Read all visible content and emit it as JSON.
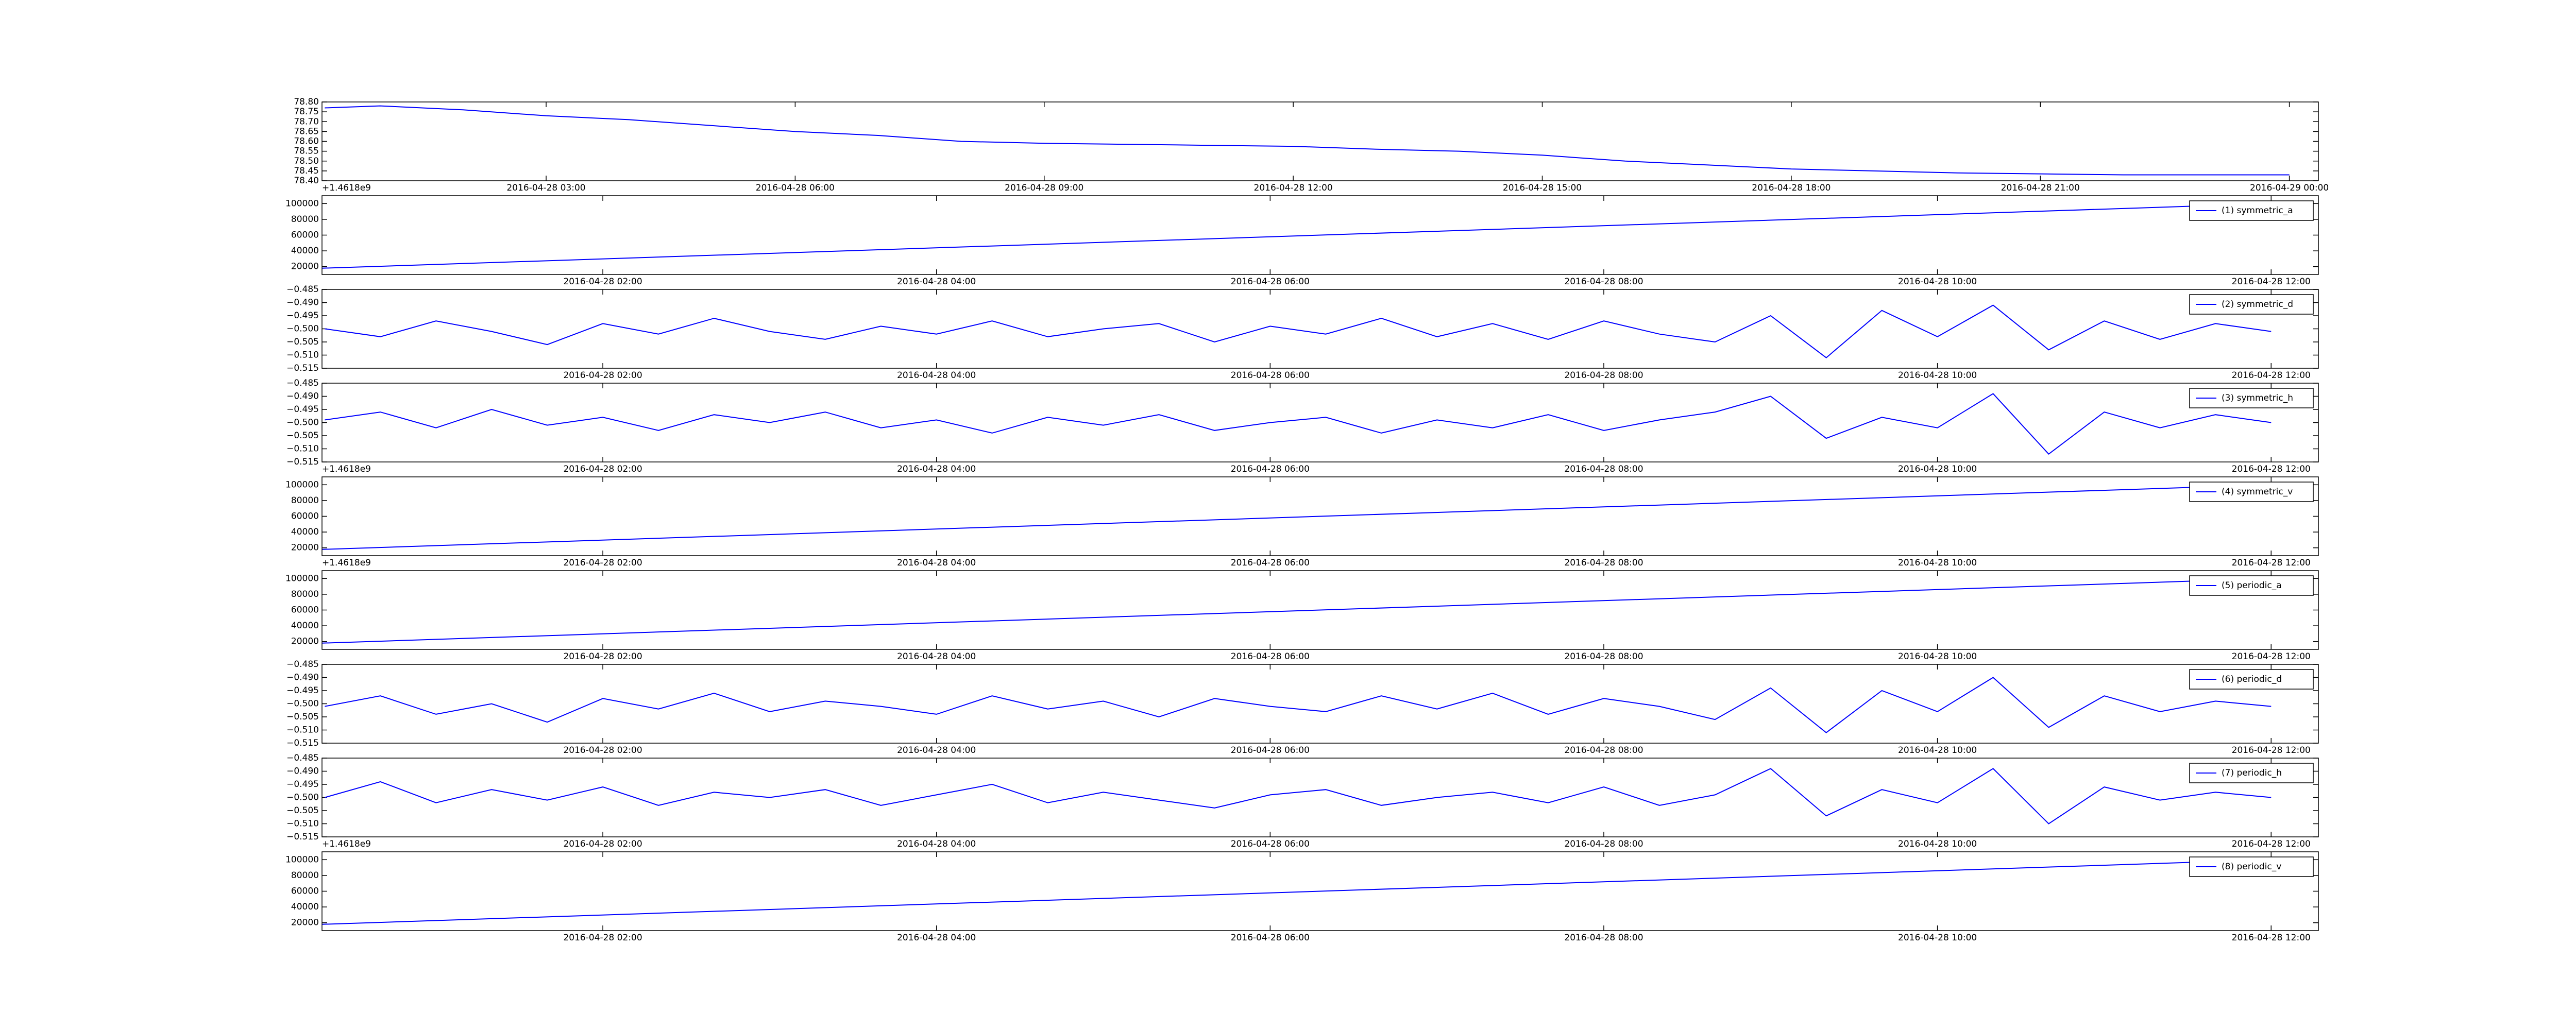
{
  "chart_data": [
    {
      "type": "line",
      "offset_text": "+1.4618e9",
      "color": "#0000ff",
      "x": [
        "2016-04-28 00:20",
        "2016-04-28 01:00",
        "2016-04-28 02:00",
        "2016-04-28 03:00",
        "2016-04-28 04:00",
        "2016-04-28 05:00",
        "2016-04-28 06:00",
        "2016-04-28 07:00",
        "2016-04-28 08:00",
        "2016-04-28 09:00",
        "2016-04-28 10:00",
        "2016-04-28 11:00",
        "2016-04-28 12:00",
        "2016-04-28 13:00",
        "2016-04-28 14:00",
        "2016-04-28 15:00",
        "2016-04-28 16:00",
        "2016-04-28 17:00",
        "2016-04-28 18:00",
        "2016-04-28 19:00",
        "2016-04-28 20:00",
        "2016-04-28 21:00",
        "2016-04-28 22:00",
        "2016-04-28 23:00",
        "2016-04-29 00:00"
      ],
      "values": [
        78.77,
        78.78,
        78.76,
        78.73,
        78.71,
        78.68,
        78.65,
        78.63,
        78.6,
        78.59,
        78.585,
        78.58,
        78.575,
        78.56,
        78.55,
        78.53,
        78.5,
        78.48,
        78.46,
        78.45,
        78.44,
        78.435,
        78.43,
        78.43,
        78.43
      ],
      "xlim": [
        "2016-04-28 00:18",
        "2016-04-29 00:21"
      ],
      "xticks": [
        "2016-04-28 03:00",
        "2016-04-28 06:00",
        "2016-04-28 09:00",
        "2016-04-28 12:00",
        "2016-04-28 15:00",
        "2016-04-28 18:00",
        "2016-04-28 21:00",
        "2016-04-29 00:00"
      ],
      "ylim": [
        78.4,
        78.8
      ],
      "yticks": [
        {
          "value": 78.4,
          "label": "78.40"
        },
        {
          "value": 78.45,
          "label": "78.45"
        },
        {
          "value": 78.5,
          "label": "78.50"
        },
        {
          "value": 78.55,
          "label": "78.55"
        },
        {
          "value": 78.6,
          "label": "78.60"
        },
        {
          "value": 78.65,
          "label": "78.65"
        },
        {
          "value": 78.7,
          "label": "78.70"
        },
        {
          "value": 78.75,
          "label": "78.75"
        },
        {
          "value": 78.8,
          "label": "78.80"
        }
      ]
    },
    {
      "type": "line",
      "legend": "upper right",
      "x": [
        "2016-04-28 00:19",
        "2016-04-28 12:00"
      ],
      "series": [
        {
          "name": "(1) symmetric_a",
          "color": "#0000ff",
          "values": [
            18000,
            100000
          ]
        }
      ],
      "xlim": [
        "2016-04-28 00:19",
        "2016-04-28 12:17"
      ],
      "xticks": [
        "2016-04-28 02:00",
        "2016-04-28 04:00",
        "2016-04-28 06:00",
        "2016-04-28 08:00",
        "2016-04-28 10:00",
        "2016-04-28 12:00"
      ],
      "ylim": [
        10000,
        110000
      ],
      "yticks": [
        20000,
        40000,
        60000,
        80000,
        100000
      ]
    },
    {
      "type": "line",
      "legend": "upper right",
      "x": [
        "2016-04-28 00:20",
        "2016-04-28 00:40",
        "2016-04-28 01:00",
        "2016-04-28 01:20",
        "2016-04-28 01:40",
        "2016-04-28 02:00",
        "2016-04-28 02:20",
        "2016-04-28 02:40",
        "2016-04-28 03:00",
        "2016-04-28 03:20",
        "2016-04-28 03:40",
        "2016-04-28 04:00",
        "2016-04-28 04:20",
        "2016-04-28 04:40",
        "2016-04-28 05:00",
        "2016-04-28 05:20",
        "2016-04-28 05:40",
        "2016-04-28 06:00",
        "2016-04-28 06:20",
        "2016-04-28 06:40",
        "2016-04-28 07:00",
        "2016-04-28 07:20",
        "2016-04-28 07:40",
        "2016-04-28 08:00",
        "2016-04-28 08:20",
        "2016-04-28 08:40",
        "2016-04-28 09:00",
        "2016-04-28 09:20",
        "2016-04-28 09:40",
        "2016-04-28 10:00",
        "2016-04-28 10:20",
        "2016-04-28 10:40",
        "2016-04-28 11:00",
        "2016-04-28 11:20",
        "2016-04-28 11:40",
        "2016-04-28 12:00"
      ],
      "series": [
        {
          "name": "(2) symmetric_d",
          "color": "#0000ff",
          "values": [
            -0.5,
            -0.503,
            -0.497,
            -0.501,
            -0.506,
            -0.498,
            -0.502,
            -0.496,
            -0.501,
            -0.504,
            -0.499,
            -0.502,
            -0.497,
            -0.503,
            -0.5,
            -0.498,
            -0.505,
            -0.499,
            -0.502,
            -0.496,
            -0.503,
            -0.498,
            -0.504,
            -0.497,
            -0.502,
            -0.505,
            -0.495,
            -0.511,
            -0.493,
            -0.503,
            -0.491,
            -0.508,
            -0.497,
            -0.504,
            -0.498,
            -0.501
          ]
        }
      ],
      "xlim": [
        "2016-04-28 00:19",
        "2016-04-28 12:17"
      ],
      "xticks": [
        "2016-04-28 02:00",
        "2016-04-28 04:00",
        "2016-04-28 06:00",
        "2016-04-28 08:00",
        "2016-04-28 10:00",
        "2016-04-28 12:00"
      ],
      "ylim": [
        -0.515,
        -0.485
      ],
      "yticks": [
        {
          "value": -0.515,
          "label": "−0.515"
        },
        {
          "value": -0.51,
          "label": "−0.510"
        },
        {
          "value": -0.505,
          "label": "−0.505"
        },
        {
          "value": -0.5,
          "label": "−0.500"
        },
        {
          "value": -0.495,
          "label": "−0.495"
        },
        {
          "value": -0.49,
          "label": "−0.490"
        },
        {
          "value": -0.485,
          "label": "−0.485"
        }
      ]
    },
    {
      "type": "line",
      "legend": "upper right",
      "offset_text": "+1.4618e9",
      "x": [
        "2016-04-28 00:20",
        "2016-04-28 00:40",
        "2016-04-28 01:00",
        "2016-04-28 01:20",
        "2016-04-28 01:40",
        "2016-04-28 02:00",
        "2016-04-28 02:20",
        "2016-04-28 02:40",
        "2016-04-28 03:00",
        "2016-04-28 03:20",
        "2016-04-28 03:40",
        "2016-04-28 04:00",
        "2016-04-28 04:20",
        "2016-04-28 04:40",
        "2016-04-28 05:00",
        "2016-04-28 05:20",
        "2016-04-28 05:40",
        "2016-04-28 06:00",
        "2016-04-28 06:20",
        "2016-04-28 06:40",
        "2016-04-28 07:00",
        "2016-04-28 07:20",
        "2016-04-28 07:40",
        "2016-04-28 08:00",
        "2016-04-28 08:20",
        "2016-04-28 08:40",
        "2016-04-28 09:00",
        "2016-04-28 09:20",
        "2016-04-28 09:40",
        "2016-04-28 10:00",
        "2016-04-28 10:20",
        "2016-04-28 10:40",
        "2016-04-28 11:00",
        "2016-04-28 11:20",
        "2016-04-28 11:40",
        "2016-04-28 12:00"
      ],
      "series": [
        {
          "name": "(3) symmetric_h",
          "color": "#0000ff",
          "values": [
            -0.499,
            -0.496,
            -0.502,
            -0.495,
            -0.501,
            -0.498,
            -0.503,
            -0.497,
            -0.5,
            -0.496,
            -0.502,
            -0.499,
            -0.504,
            -0.498,
            -0.501,
            -0.497,
            -0.503,
            -0.5,
            -0.498,
            -0.504,
            -0.499,
            -0.502,
            -0.497,
            -0.503,
            -0.499,
            -0.496,
            -0.49,
            -0.506,
            -0.498,
            -0.502,
            -0.489,
            -0.512,
            -0.496,
            -0.502,
            -0.497,
            -0.5
          ]
        }
      ],
      "xlim": [
        "2016-04-28 00:19",
        "2016-04-28 12:17"
      ],
      "xticks": [
        "2016-04-28 02:00",
        "2016-04-28 04:00",
        "2016-04-28 06:00",
        "2016-04-28 08:00",
        "2016-04-28 10:00",
        "2016-04-28 12:00"
      ],
      "ylim": [
        -0.515,
        -0.485
      ],
      "yticks": [
        {
          "value": -0.515,
          "label": "−0.515"
        },
        {
          "value": -0.51,
          "label": "−0.510"
        },
        {
          "value": -0.505,
          "label": "−0.505"
        },
        {
          "value": -0.5,
          "label": "−0.500"
        },
        {
          "value": -0.495,
          "label": "−0.495"
        },
        {
          "value": -0.49,
          "label": "−0.490"
        },
        {
          "value": -0.485,
          "label": "−0.485"
        }
      ]
    },
    {
      "type": "line",
      "legend": "upper right",
      "offset_text": "+1.4618e9",
      "x": [
        "2016-04-28 00:19",
        "2016-04-28 12:00"
      ],
      "series": [
        {
          "name": "(4) symmetric_v",
          "color": "#0000ff",
          "values": [
            18000,
            100000
          ]
        }
      ],
      "xlim": [
        "2016-04-28 00:19",
        "2016-04-28 12:17"
      ],
      "xticks": [
        "2016-04-28 02:00",
        "2016-04-28 04:00",
        "2016-04-28 06:00",
        "2016-04-28 08:00",
        "2016-04-28 10:00",
        "2016-04-28 12:00"
      ],
      "ylim": [
        10000,
        110000
      ],
      "yticks": [
        20000,
        40000,
        60000,
        80000,
        100000
      ]
    },
    {
      "type": "line",
      "legend": "upper right",
      "x": [
        "2016-04-28 00:19",
        "2016-04-28 12:00"
      ],
      "series": [
        {
          "name": "(5) periodic_a",
          "color": "#0000ff",
          "values": [
            18000,
            100000
          ]
        }
      ],
      "xlim": [
        "2016-04-28 00:19",
        "2016-04-28 12:17"
      ],
      "xticks": [
        "2016-04-28 02:00",
        "2016-04-28 04:00",
        "2016-04-28 06:00",
        "2016-04-28 08:00",
        "2016-04-28 10:00",
        "2016-04-28 12:00"
      ],
      "ylim": [
        10000,
        110000
      ],
      "yticks": [
        20000,
        40000,
        60000,
        80000,
        100000
      ]
    },
    {
      "type": "line",
      "legend": "upper right",
      "x": [
        "2016-04-28 00:20",
        "2016-04-28 00:40",
        "2016-04-28 01:00",
        "2016-04-28 01:20",
        "2016-04-28 01:40",
        "2016-04-28 02:00",
        "2016-04-28 02:20",
        "2016-04-28 02:40",
        "2016-04-28 03:00",
        "2016-04-28 03:20",
        "2016-04-28 03:40",
        "2016-04-28 04:00",
        "2016-04-28 04:20",
        "2016-04-28 04:40",
        "2016-04-28 05:00",
        "2016-04-28 05:20",
        "2016-04-28 05:40",
        "2016-04-28 06:00",
        "2016-04-28 06:20",
        "2016-04-28 06:40",
        "2016-04-28 07:00",
        "2016-04-28 07:20",
        "2016-04-28 07:40",
        "2016-04-28 08:00",
        "2016-04-28 08:20",
        "2016-04-28 08:40",
        "2016-04-28 09:00",
        "2016-04-28 09:20",
        "2016-04-28 09:40",
        "2016-04-28 10:00",
        "2016-04-28 10:20",
        "2016-04-28 10:40",
        "2016-04-28 11:00",
        "2016-04-28 11:20",
        "2016-04-28 11:40",
        "2016-04-28 12:00"
      ],
      "series": [
        {
          "name": "(6) periodic_d",
          "color": "#0000ff",
          "values": [
            -0.501,
            -0.497,
            -0.504,
            -0.5,
            -0.507,
            -0.498,
            -0.502,
            -0.496,
            -0.503,
            -0.499,
            -0.501,
            -0.504,
            -0.497,
            -0.502,
            -0.499,
            -0.505,
            -0.498,
            -0.501,
            -0.503,
            -0.497,
            -0.502,
            -0.496,
            -0.504,
            -0.498,
            -0.501,
            -0.506,
            -0.494,
            -0.511,
            -0.495,
            -0.503,
            -0.49,
            -0.509,
            -0.497,
            -0.503,
            -0.499,
            -0.501
          ]
        }
      ],
      "xlim": [
        "2016-04-28 00:19",
        "2016-04-28 12:17"
      ],
      "xticks": [
        "2016-04-28 02:00",
        "2016-04-28 04:00",
        "2016-04-28 06:00",
        "2016-04-28 08:00",
        "2016-04-28 10:00",
        "2016-04-28 12:00"
      ],
      "ylim": [
        -0.515,
        -0.485
      ],
      "yticks": [
        {
          "value": -0.515,
          "label": "−0.515"
        },
        {
          "value": -0.51,
          "label": "−0.510"
        },
        {
          "value": -0.505,
          "label": "−0.505"
        },
        {
          "value": -0.5,
          "label": "−0.500"
        },
        {
          "value": -0.495,
          "label": "−0.495"
        },
        {
          "value": -0.49,
          "label": "−0.490"
        },
        {
          "value": -0.485,
          "label": "−0.485"
        }
      ]
    },
    {
      "type": "line",
      "legend": "upper right",
      "offset_text": "+1.4618e9",
      "x": [
        "2016-04-28 00:20",
        "2016-04-28 00:40",
        "2016-04-28 01:00",
        "2016-04-28 01:20",
        "2016-04-28 01:40",
        "2016-04-28 02:00",
        "2016-04-28 02:20",
        "2016-04-28 02:40",
        "2016-04-28 03:00",
        "2016-04-28 03:20",
        "2016-04-28 03:40",
        "2016-04-28 04:00",
        "2016-04-28 04:20",
        "2016-04-28 04:40",
        "2016-04-28 05:00",
        "2016-04-28 05:20",
        "2016-04-28 05:40",
        "2016-04-28 06:00",
        "2016-04-28 06:20",
        "2016-04-28 06:40",
        "2016-04-28 07:00",
        "2016-04-28 07:20",
        "2016-04-28 07:40",
        "2016-04-28 08:00",
        "2016-04-28 08:20",
        "2016-04-28 08:40",
        "2016-04-28 09:00",
        "2016-04-28 09:20",
        "2016-04-28 09:40",
        "2016-04-28 10:00",
        "2016-04-28 10:20",
        "2016-04-28 10:40",
        "2016-04-28 11:00",
        "2016-04-28 11:20",
        "2016-04-28 11:40",
        "2016-04-28 12:00"
      ],
      "series": [
        {
          "name": "(7) periodic_h",
          "color": "#0000ff",
          "values": [
            -0.5,
            -0.494,
            -0.502,
            -0.497,
            -0.501,
            -0.496,
            -0.503,
            -0.498,
            -0.5,
            -0.497,
            -0.503,
            -0.499,
            -0.495,
            -0.502,
            -0.498,
            -0.501,
            -0.504,
            -0.499,
            -0.497,
            -0.503,
            -0.5,
            -0.498,
            -0.502,
            -0.496,
            -0.503,
            -0.499,
            -0.489,
            -0.507,
            -0.497,
            -0.502,
            -0.489,
            -0.51,
            -0.496,
            -0.501,
            -0.498,
            -0.5
          ]
        }
      ],
      "xlim": [
        "2016-04-28 00:19",
        "2016-04-28 12:17"
      ],
      "xticks": [
        "2016-04-28 02:00",
        "2016-04-28 04:00",
        "2016-04-28 06:00",
        "2016-04-28 08:00",
        "2016-04-28 10:00",
        "2016-04-28 12:00"
      ],
      "ylim": [
        -0.515,
        -0.485
      ],
      "yticks": [
        {
          "value": -0.515,
          "label": "−0.515"
        },
        {
          "value": -0.51,
          "label": "−0.510"
        },
        {
          "value": -0.505,
          "label": "−0.505"
        },
        {
          "value": -0.5,
          "label": "−0.500"
        },
        {
          "value": -0.495,
          "label": "−0.495"
        },
        {
          "value": -0.49,
          "label": "−0.490"
        },
        {
          "value": -0.485,
          "label": "−0.485"
        }
      ]
    },
    {
      "type": "line",
      "legend": "upper right",
      "x": [
        "2016-04-28 00:19",
        "2016-04-28 12:00"
      ],
      "series": [
        {
          "name": "(8) periodic_v",
          "color": "#0000ff",
          "values": [
            18000,
            100000
          ]
        }
      ],
      "xlim": [
        "2016-04-28 00:19",
        "2016-04-28 12:17"
      ],
      "xticks": [
        "2016-04-28 02:00",
        "2016-04-28 04:00",
        "2016-04-28 06:00",
        "2016-04-28 08:00",
        "2016-04-28 10:00",
        "2016-04-28 12:00"
      ],
      "ylim": [
        10000,
        110000
      ],
      "yticks": [
        20000,
        40000,
        60000,
        80000,
        100000
      ]
    }
  ]
}
